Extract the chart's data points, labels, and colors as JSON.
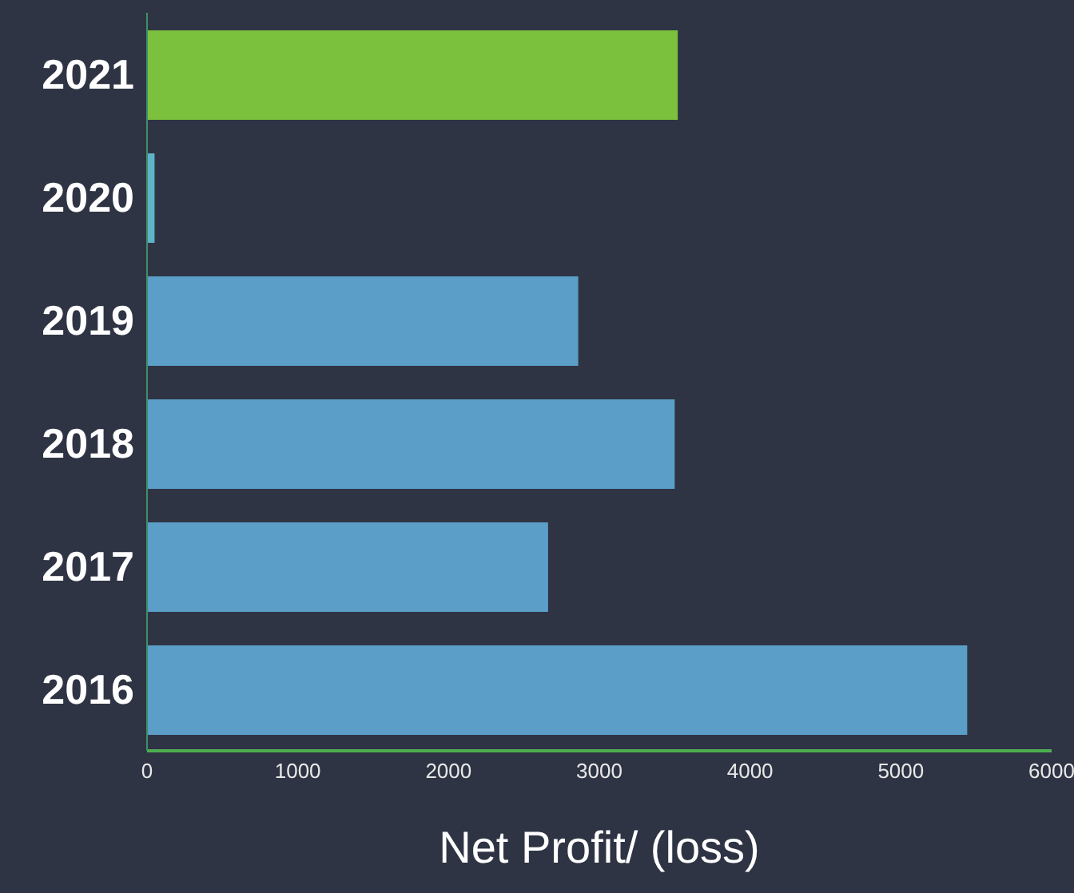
{
  "chart_data": {
    "type": "bar",
    "orientation": "horizontal",
    "xlabel": "Net Profit/ (loss)",
    "categories": [
      "2021",
      "2020",
      "2019",
      "2018",
      "2017",
      "2016"
    ],
    "values": [
      3520,
      50,
      2860,
      3500,
      2660,
      5440
    ],
    "colors": [
      "#7cc13e",
      "#5fb3c8",
      "#5b9fc9",
      "#5b9fc9",
      "#5b9fc9",
      "#5b9fc9"
    ],
    "xlim": [
      0,
      6000
    ],
    "xticks": [
      0,
      1000,
      2000,
      3000,
      4000,
      5000,
      6000
    ],
    "grid": false,
    "legend": false
  }
}
